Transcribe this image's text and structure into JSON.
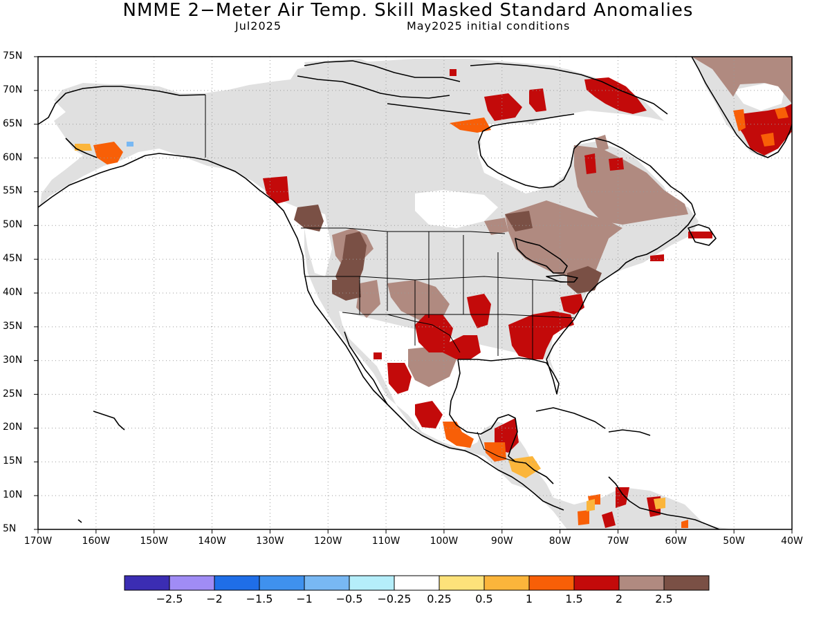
{
  "title": "NMME 2−Meter Air Temp. Skill Masked Standard Anomalies",
  "target_month": "Jul2025",
  "initial_conditions": "May2025 initial conditions",
  "lat_ticks": [
    "75N",
    "70N",
    "65N",
    "60N",
    "55N",
    "50N",
    "45N",
    "40N",
    "35N",
    "30N",
    "25N",
    "20N",
    "15N",
    "10N",
    "5N"
  ],
  "lon_ticks": [
    "170W",
    "160W",
    "150W",
    "140W",
    "130W",
    "120W",
    "110W",
    "100W",
    "90W",
    "80W",
    "70W",
    "60W",
    "50W",
    "40W"
  ],
  "colorbar": {
    "colors": [
      "#3b2db3",
      "#a08cf5",
      "#1f6ee8",
      "#3f91ee",
      "#78b8f3",
      "#b5eefa",
      "#ffffff",
      "#fde27a",
      "#fbb53b",
      "#f85f07",
      "#c30a0a",
      "#b08a80",
      "#7a5045"
    ],
    "labels": [
      "−2.5",
      "−2",
      "−1.5",
      "−1",
      "−0.5",
      "−0.25",
      "0.25",
      "0.5",
      "1",
      "1.5",
      "2",
      "2.5"
    ]
  },
  "colors": {
    "land_masked": "#e0e0e0",
    "coast": "#000000",
    "grid": "#999999"
  }
}
